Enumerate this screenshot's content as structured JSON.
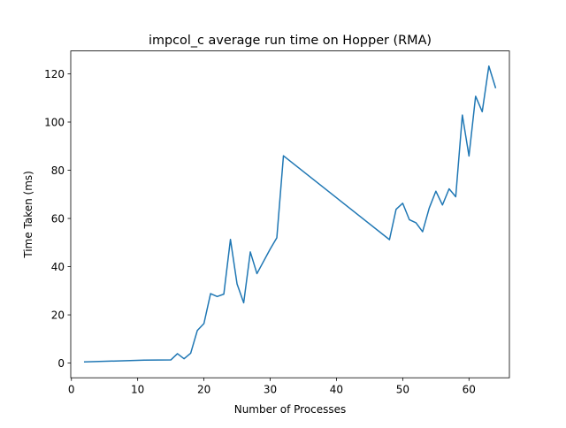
{
  "chart_data": {
    "type": "line",
    "title": "impcol_c average run time on Hopper (RMA)",
    "xlabel": "Number of Processes",
    "ylabel": "Time Taken (ms)",
    "xlim": [
      -0.1,
      66.1
    ],
    "ylim": [
      -6.1,
      129.5
    ],
    "xticks": [
      0,
      10,
      20,
      30,
      40,
      50,
      60
    ],
    "yticks": [
      0,
      20,
      40,
      60,
      80,
      100,
      120
    ],
    "grid": false,
    "series": [
      {
        "color": "#1f77b4",
        "x": [
          2,
          11,
          15,
          16,
          17,
          18,
          19,
          20,
          21,
          22,
          23,
          24,
          25,
          26,
          27,
          28,
          30,
          31,
          32,
          48,
          49,
          50,
          51,
          52,
          53,
          54,
          55,
          56,
          57,
          58,
          59,
          60,
          61,
          62,
          63,
          64
        ],
        "y": [
          0.5,
          1.2,
          1.3,
          3.9,
          1.8,
          4.1,
          13.5,
          16.4,
          28.8,
          27.6,
          28.6,
          51.3,
          32.8,
          25.0,
          46.1,
          37.1,
          47.3,
          52.0,
          86.0,
          51.2,
          63.8,
          66.3,
          59.5,
          58.2,
          54.5,
          64.3,
          71.3,
          65.6,
          72.3,
          69.0,
          102.9,
          85.9,
          110.7,
          104.3,
          123.2,
          114.3
        ]
      }
    ]
  }
}
